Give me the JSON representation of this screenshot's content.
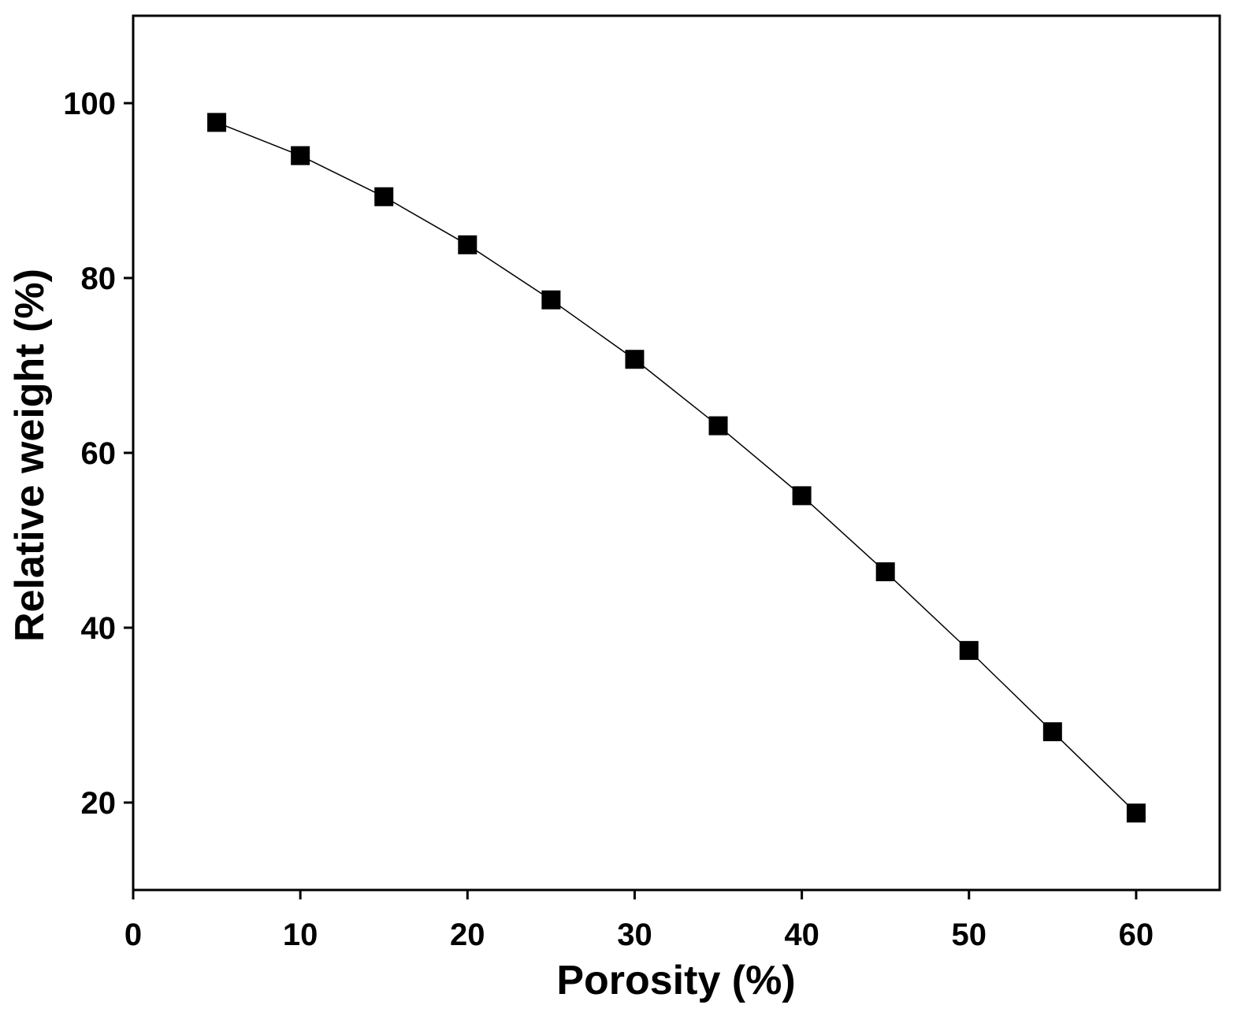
{
  "chart_data": {
    "type": "line",
    "x_label": "Porosity (%)",
    "y_label": "Relative weight (%)",
    "x": [
      5,
      10,
      15,
      20,
      25,
      30,
      35,
      40,
      45,
      50,
      55,
      60
    ],
    "series": [
      {
        "color": "#000000",
        "marker": "square",
        "values": [
          97.8,
          94.0,
          89.3,
          83.8,
          77.5,
          70.7,
          63.1,
          55.1,
          46.4,
          37.4,
          28.1,
          18.8
        ]
      }
    ],
    "xlim": [
      0,
      65
    ],
    "xticks": [
      0,
      10,
      20,
      30,
      40,
      50,
      60
    ],
    "ylim": [
      10,
      110
    ],
    "yticks": [
      20,
      40,
      60,
      80,
      100
    ],
    "grid": false
  }
}
